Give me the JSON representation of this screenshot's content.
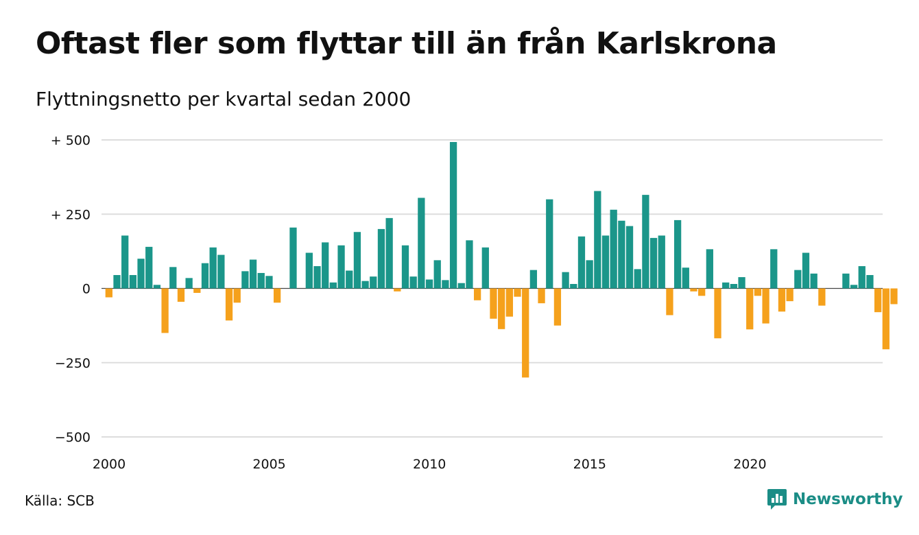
{
  "header": {
    "title": "Oftast fler som flyttar till än från Karlskrona",
    "subtitle": "Flyttningsnetto per kvartal sedan 2000"
  },
  "footer": {
    "source": "Källa: SCB",
    "brand": "Newsworthy",
    "brand_icon": "newsworthy-logo-icon"
  },
  "colors": {
    "positive": "#1b968a",
    "negative": "#f5a11c",
    "grid": "#dddddd",
    "brand": "#1b8d86"
  },
  "chart_data": {
    "type": "bar",
    "x_start": 2000,
    "periods_per_year": 4,
    "ylim": [
      -500,
      500
    ],
    "y_ticks": [
      500,
      250,
      0,
      -250,
      -500
    ],
    "y_tick_labels": [
      "+ 500",
      "+ 250",
      "0",
      "−250",
      "−500"
    ],
    "x_ticks": [
      2000,
      2005,
      2010,
      2015,
      2020
    ],
    "x_tick_labels": [
      "2000",
      "2005",
      "2010",
      "2015",
      "2020"
    ],
    "grid": true,
    "values": [
      -30,
      45,
      178,
      45,
      100,
      140,
      12,
      -150,
      72,
      -45,
      35,
      -15,
      85,
      138,
      113,
      -108,
      -48,
      58,
      97,
      52,
      42,
      -48,
      0,
      205,
      0,
      120,
      75,
      155,
      20,
      145,
      60,
      190,
      25,
      40,
      200,
      237,
      -10,
      145,
      40,
      305,
      30,
      95,
      28,
      493,
      18,
      162,
      -40,
      138,
      -102,
      -137,
      -95,
      -28,
      -300,
      62,
      -50,
      300,
      -125,
      55,
      15,
      175,
      95,
      328,
      178,
      265,
      228,
      210,
      65,
      315,
      170,
      178,
      -90,
      230,
      70,
      -10,
      -25,
      132,
      -168,
      20,
      15,
      38,
      -138,
      -25,
      -118,
      132,
      -78,
      -43,
      62,
      120,
      50,
      -58,
      0,
      0,
      50,
      12,
      75,
      45,
      -80,
      -205,
      -53
    ]
  }
}
